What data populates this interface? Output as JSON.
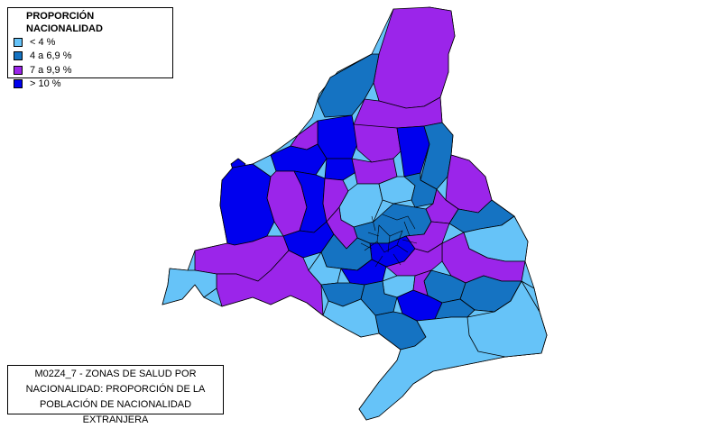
{
  "legend": {
    "title": "PROPORCIÓN NACIONALIDAD",
    "items": [
      {
        "label": "< 4 %",
        "color": "#66c3f8"
      },
      {
        "label": "4 a 6,9 %",
        "color": "#1573c2"
      },
      {
        "label": "7 a 9,9 %",
        "color": "#9b25ea"
      },
      {
        "label": "> 10 %",
        "color": "#0000ee"
      }
    ]
  },
  "caption": {
    "lines": [
      "M02Z4_7 - ZONAS DE SALUD POR",
      "NACIONALIDAD: PROPORCIÓN DE LA",
      "POBLACIÓN DE NACIONALIDAD EXTRANJERA"
    ]
  }
}
